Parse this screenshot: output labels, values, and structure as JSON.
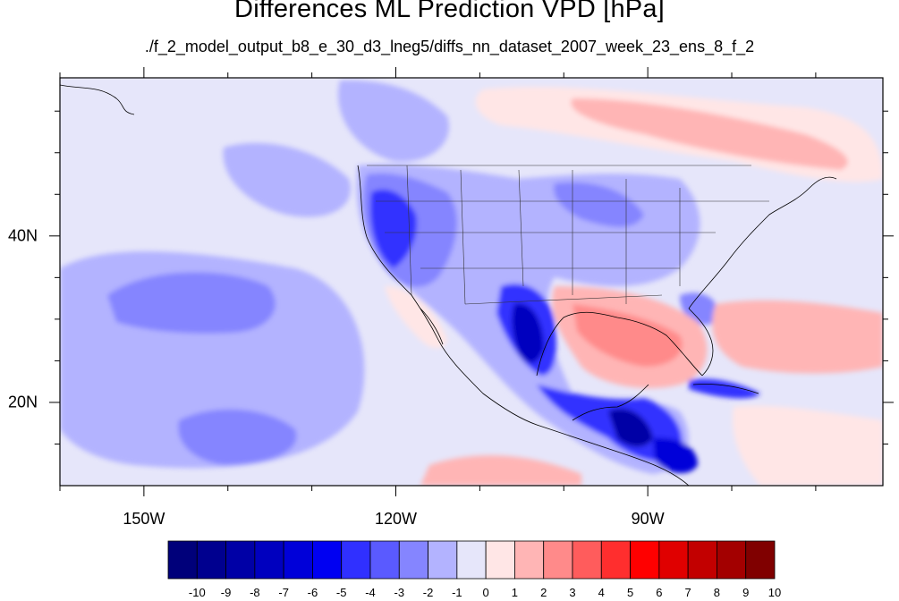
{
  "title": "Differences ML Prediction VPD [hPa]",
  "subtitle": "./f_2_model_output_b8_e_30_d3_lneg5/diffs_nn_dataset_2007_week_23_ens_8_f_2",
  "map": {
    "lon_range": [
      -160,
      -62
    ],
    "lat_range": [
      10,
      59
    ],
    "lon_labels": [
      {
        "lon": -150,
        "text": "150W"
      },
      {
        "lon": -120,
        "text": "120W"
      },
      {
        "lon": -90,
        "text": "90W"
      }
    ],
    "lat_labels": [
      {
        "lat": 40,
        "text": "40N"
      },
      {
        "lat": 20,
        "text": "20N"
      }
    ]
  },
  "colorbar": {
    "labels": [
      "-10",
      "-9",
      "-8",
      "-7",
      "-6",
      "-5",
      "-4",
      "-3",
      "-2",
      "-1",
      "0",
      "1",
      "2",
      "3",
      "4",
      "5",
      "6",
      "7",
      "8",
      "9",
      "10"
    ],
    "colors": [
      "#00007a",
      "#00008f",
      "#0000a6",
      "#0000bf",
      "#0000d9",
      "#0000f2",
      "#3030ff",
      "#5a5aff",
      "#8585ff",
      "#b3b3ff",
      "#e6e6fa",
      "#ffe6e6",
      "#ffb5b5",
      "#ff8a8a",
      "#ff5c5c",
      "#ff2e2e",
      "#ff0000",
      "#e00000",
      "#c20000",
      "#a30000",
      "#800000"
    ]
  }
}
